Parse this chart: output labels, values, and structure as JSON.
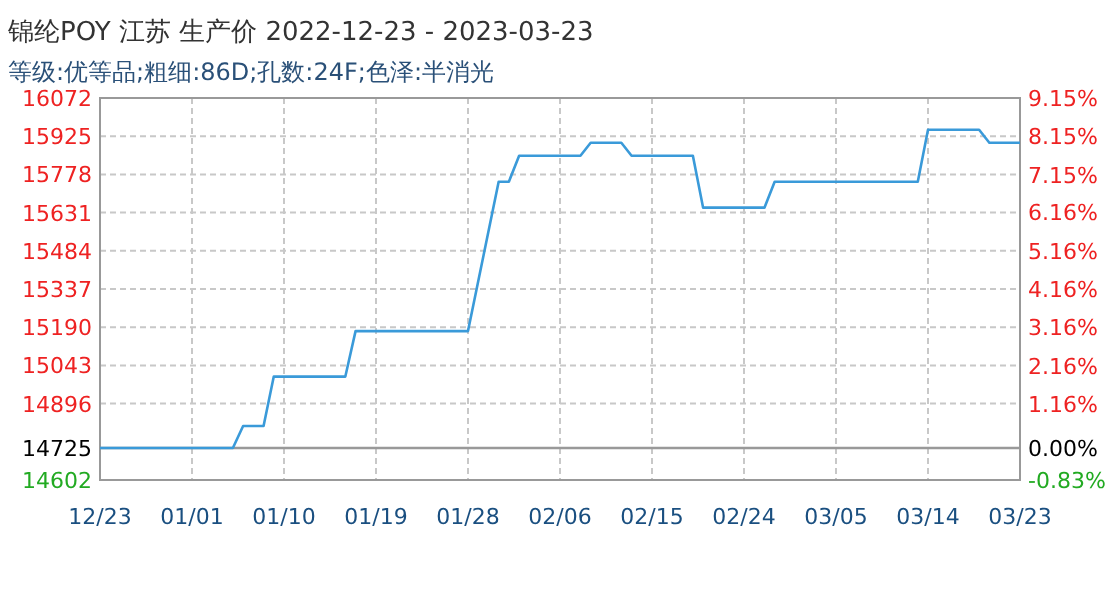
{
  "chart_data": {
    "type": "line",
    "title": "锦纶POY 江苏 生产价 2022-12-23 - 2023-03-23",
    "subtitle": "等级:优等品;粗细:86D;孔数:24F;色泽:半消光",
    "x": [
      "2022-12-23",
      "2023-01-05",
      "2023-01-06",
      "2023-01-08",
      "2023-01-09",
      "2023-01-16",
      "2023-01-17",
      "2023-01-28",
      "2023-01-31",
      "2023-02-01",
      "2023-02-02",
      "2023-02-08",
      "2023-02-09",
      "2023-02-12",
      "2023-02-13",
      "2023-02-19",
      "2023-02-20",
      "2023-02-26",
      "2023-02-27",
      "2023-03-13",
      "2023-03-14",
      "2023-03-19",
      "2023-03-20",
      "2023-03-23"
    ],
    "series": [
      {
        "color": "#3a9ad9",
        "values": [
          14725,
          14725,
          14810,
          14810,
          15000,
          15000,
          15175,
          15175,
          15750,
          15750,
          15850,
          15850,
          15900,
          15900,
          15850,
          15850,
          15650,
          15650,
          15750,
          15750,
          15950,
          15950,
          15900,
          15900
        ]
      }
    ],
    "xlim": [
      "2022-12-23",
      "2023-03-23"
    ],
    "xticks": [
      {
        "value": "2022-12-23",
        "label": "12/23"
      },
      {
        "value": "2023-01-01",
        "label": "01/01"
      },
      {
        "value": "2023-01-10",
        "label": "01/10"
      },
      {
        "value": "2023-01-19",
        "label": "01/19"
      },
      {
        "value": "2023-01-28",
        "label": "01/28"
      },
      {
        "value": "2023-02-06",
        "label": "02/06"
      },
      {
        "value": "2023-02-15",
        "label": "02/15"
      },
      {
        "value": "2023-02-24",
        "label": "02/24"
      },
      {
        "value": "2023-03-05",
        "label": "03/05"
      },
      {
        "value": "2023-03-14",
        "label": "03/14"
      },
      {
        "value": "2023-03-23",
        "label": "03/23"
      }
    ],
    "ylim": [
      14602,
      16072
    ],
    "yticks": [
      14602,
      14725,
      14896,
      15043,
      15190,
      15337,
      15484,
      15631,
      15778,
      15925,
      16072
    ],
    "y2lim": [
      -0.83,
      9.15
    ],
    "y2ticks": [
      {
        "value": -0.83,
        "label": "-0.83%"
      },
      {
        "value": 0,
        "label": "0.00%"
      },
      {
        "value": 1.16,
        "label": "1.16%"
      },
      {
        "value": 2.16,
        "label": "2.16%"
      },
      {
        "value": 3.16,
        "label": "3.16%"
      },
      {
        "value": 4.16,
        "label": "4.16%"
      },
      {
        "value": 5.16,
        "label": "5.16%"
      },
      {
        "value": 6.16,
        "label": "6.16%"
      },
      {
        "value": 7.15,
        "label": "7.15%"
      },
      {
        "value": 8.15,
        "label": "8.15%"
      },
      {
        "value": 9.15,
        "label": "9.15%"
      }
    ],
    "grid": true,
    "ref_lines": [
      {
        "axis": "y",
        "value": 14725,
        "color": "#999999"
      }
    ]
  }
}
